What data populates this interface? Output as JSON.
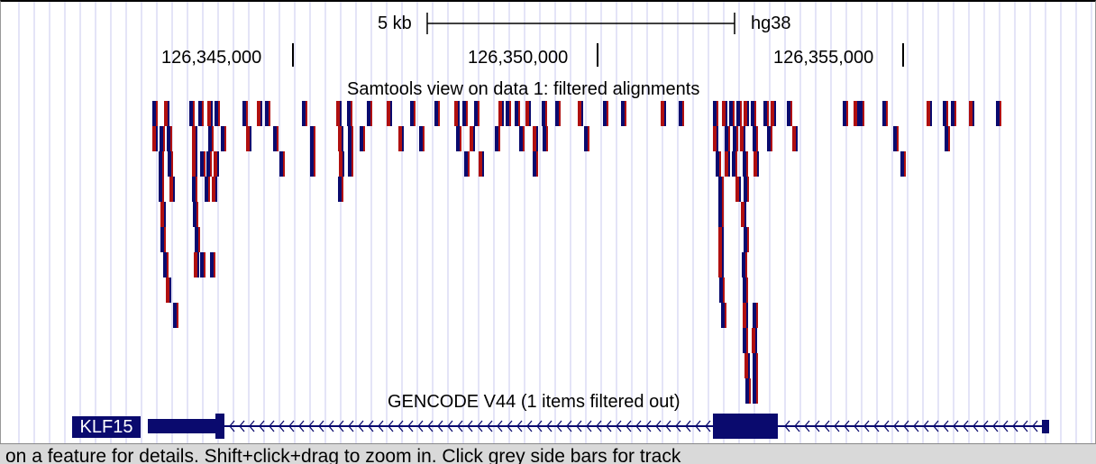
{
  "scale": {
    "label": "5 kb",
    "assembly": "hg38"
  },
  "ruler": {
    "positions": [
      "126,345,000",
      "126,350,000",
      "126,355,000"
    ]
  },
  "alignment_track": {
    "title": "Samtools view on data 1: filtered alignments"
  },
  "gene_track": {
    "title": "GENCODE V44 (1 items filtered out)",
    "gene_name": "KLF15"
  },
  "status_bar": {
    "text": "on a feature for details. Shift+click+drag to zoom in. Click grey side bars for track"
  },
  "colors": {
    "navy": "#0a0a6e",
    "red": "#b01010",
    "grid": "#c8c8ef"
  }
}
